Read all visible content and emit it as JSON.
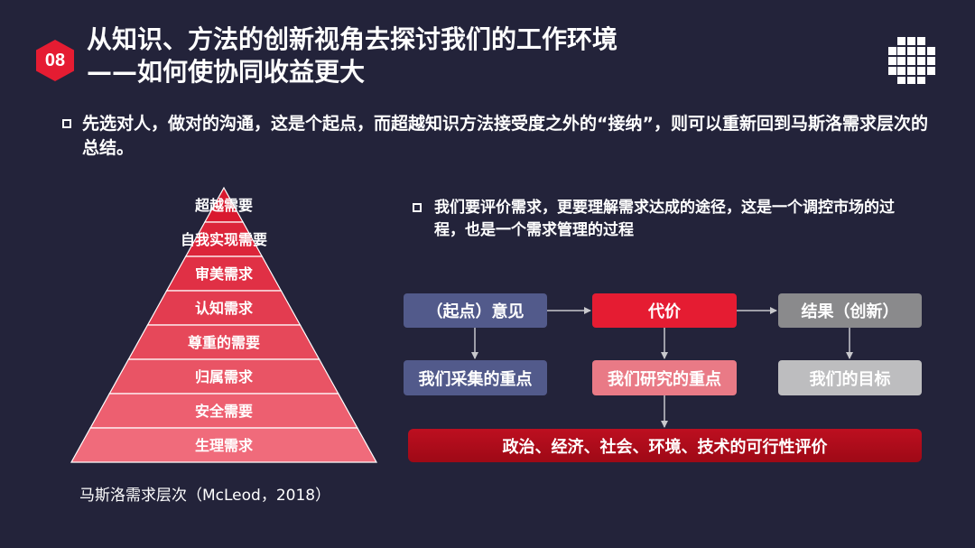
{
  "slide": {
    "number": "08",
    "title_line1": "从知识、方法的创新视角去探讨我们的工作环境",
    "title_line2": "——如何使协同收益更大"
  },
  "bullets": {
    "intro": "先选对人，做对的沟通，这是个起点，而超越知识方法接受度之外的“接纳”，则可以重新回到马斯洛需求层次的总结。",
    "evaluation": "我们要评价需求，更要理解需求达成的途径，这是一个调控市场的过程，也是一个需求管理的过程"
  },
  "pyramid": {
    "levels": [
      "超越需要",
      "自我实现需要",
      "审美需求",
      "认知需求",
      "尊重的需要",
      "归属需求",
      "安全需要",
      "生理需求"
    ],
    "caption": "马斯洛需求层次（McLeod，2018）",
    "colors": {
      "top": "#d9192f",
      "bottom": "#f06b7b",
      "line": "#ffffff"
    }
  },
  "flow": {
    "top_row": [
      "（起点）意见",
      "代价",
      "结果（创新）"
    ],
    "second_row": [
      "我们采集的重点",
      "我们研究的重点",
      "我们的目标"
    ],
    "bottom": "政治、经济、社会、环境、技术的可行性评价",
    "colors": {
      "opinion": "#525a8b",
      "cost": "#e51c32",
      "result": "#8a8a8c",
      "research": "#e97a86",
      "goal": "#bdbdbf",
      "bottom": "#b30d1d",
      "arrow": "#c8c8cc"
    }
  },
  "icons": {
    "badge": "hexagon-badge",
    "menu": "grid-icon"
  }
}
